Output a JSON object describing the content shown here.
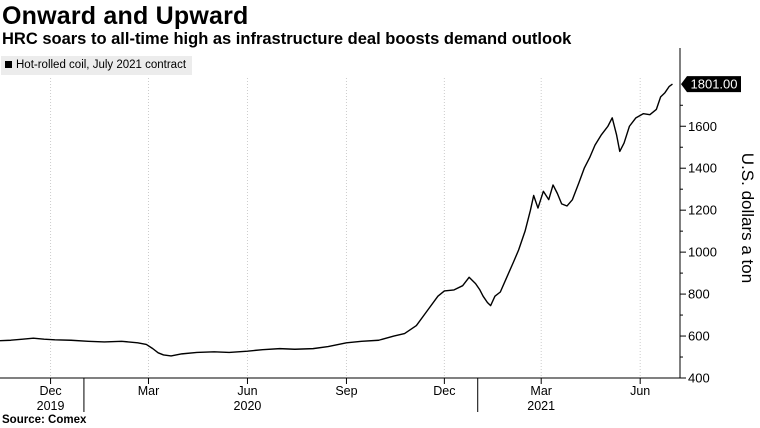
{
  "title": "Onward and Upward",
  "subtitle": "HRC soars to all-time high as infrastructure deal boosts demand outlook",
  "legend_label": "Hot-rolled coil, July 2021 contract",
  "source": "Source: Comex",
  "colors": {
    "line": "#000000",
    "grid": "#cccccc",
    "legend_bg": "#ececec",
    "callout_bg": "#000000",
    "callout_text": "#ffffff"
  },
  "chart_data": {
    "type": "line",
    "ylabel": "U.S. dollars a ton",
    "ylim": [
      400,
      1830
    ],
    "yticks": [
      400,
      600,
      800,
      1000,
      1200,
      1400,
      1600
    ],
    "y_axis_side": "right",
    "grid": "vertical dotted",
    "xlim": [
      "2019-10-15",
      "2021-07-08"
    ],
    "xticks": [
      {
        "date": "2019-12-01",
        "label": "Dec",
        "year": "2019"
      },
      {
        "date": "2020-03-01",
        "label": "Mar",
        "year": ""
      },
      {
        "date": "2020-06-01",
        "label": "Jun",
        "year": "2020"
      },
      {
        "date": "2020-09-01",
        "label": "Sep",
        "year": ""
      },
      {
        "date": "2020-12-01",
        "label": "Dec",
        "year": ""
      },
      {
        "date": "2021-03-01",
        "label": "Mar",
        "year": "2021"
      },
      {
        "date": "2021-06-01",
        "label": "Jun",
        "year": ""
      }
    ],
    "last_value_label": "1801.00",
    "series": [
      {
        "name": "Hot-rolled coil, July 2021 contract",
        "points": [
          [
            "2019-10-15",
            578
          ],
          [
            "2019-10-25",
            580
          ],
          [
            "2019-11-05",
            585
          ],
          [
            "2019-11-15",
            590
          ],
          [
            "2019-11-25",
            585
          ],
          [
            "2019-12-05",
            582
          ],
          [
            "2019-12-20",
            580
          ],
          [
            "2020-01-05",
            575
          ],
          [
            "2020-01-20",
            572
          ],
          [
            "2020-02-05",
            575
          ],
          [
            "2020-02-20",
            568
          ],
          [
            "2020-02-28",
            560
          ],
          [
            "2020-03-05",
            540
          ],
          [
            "2020-03-10",
            520
          ],
          [
            "2020-03-15",
            510
          ],
          [
            "2020-03-22",
            505
          ],
          [
            "2020-04-01",
            515
          ],
          [
            "2020-04-15",
            522
          ],
          [
            "2020-05-01",
            525
          ],
          [
            "2020-05-15",
            522
          ],
          [
            "2020-06-01",
            528
          ],
          [
            "2020-06-15",
            535
          ],
          [
            "2020-07-01",
            540
          ],
          [
            "2020-07-15",
            537
          ],
          [
            "2020-08-01",
            540
          ],
          [
            "2020-08-15",
            550
          ],
          [
            "2020-09-01",
            568
          ],
          [
            "2020-09-15",
            575
          ],
          [
            "2020-10-01",
            580
          ],
          [
            "2020-10-15",
            600
          ],
          [
            "2020-10-25",
            612
          ],
          [
            "2020-11-05",
            650
          ],
          [
            "2020-11-15",
            720
          ],
          [
            "2020-11-25",
            790
          ],
          [
            "2020-12-01",
            815
          ],
          [
            "2020-12-10",
            820
          ],
          [
            "2020-12-18",
            840
          ],
          [
            "2020-12-24",
            880
          ],
          [
            "2020-12-30",
            850
          ],
          [
            "2021-01-03",
            820
          ],
          [
            "2021-01-06",
            790
          ],
          [
            "2021-01-10",
            760
          ],
          [
            "2021-01-13",
            745
          ],
          [
            "2021-01-17",
            790
          ],
          [
            "2021-01-22",
            810
          ],
          [
            "2021-01-28",
            880
          ],
          [
            "2021-02-03",
            950
          ],
          [
            "2021-02-08",
            1010
          ],
          [
            "2021-02-14",
            1100
          ],
          [
            "2021-02-19",
            1200
          ],
          [
            "2021-02-22",
            1270
          ],
          [
            "2021-02-26",
            1210
          ],
          [
            "2021-03-03",
            1290
          ],
          [
            "2021-03-08",
            1250
          ],
          [
            "2021-03-12",
            1320
          ],
          [
            "2021-03-16",
            1280
          ],
          [
            "2021-03-20",
            1230
          ],
          [
            "2021-03-25",
            1220
          ],
          [
            "2021-03-30",
            1250
          ],
          [
            "2021-04-05",
            1330
          ],
          [
            "2021-04-10",
            1400
          ],
          [
            "2021-04-15",
            1450
          ],
          [
            "2021-04-20",
            1510
          ],
          [
            "2021-04-26",
            1560
          ],
          [
            "2021-05-02",
            1600
          ],
          [
            "2021-05-06",
            1640
          ],
          [
            "2021-05-10",
            1560
          ],
          [
            "2021-05-13",
            1480
          ],
          [
            "2021-05-17",
            1520
          ],
          [
            "2021-05-22",
            1600
          ],
          [
            "2021-05-28",
            1640
          ],
          [
            "2021-06-04",
            1660
          ],
          [
            "2021-06-10",
            1655
          ],
          [
            "2021-06-16",
            1680
          ],
          [
            "2021-06-20",
            1740
          ],
          [
            "2021-06-24",
            1760
          ],
          [
            "2021-06-28",
            1790
          ],
          [
            "2021-07-01",
            1801
          ]
        ]
      }
    ]
  }
}
